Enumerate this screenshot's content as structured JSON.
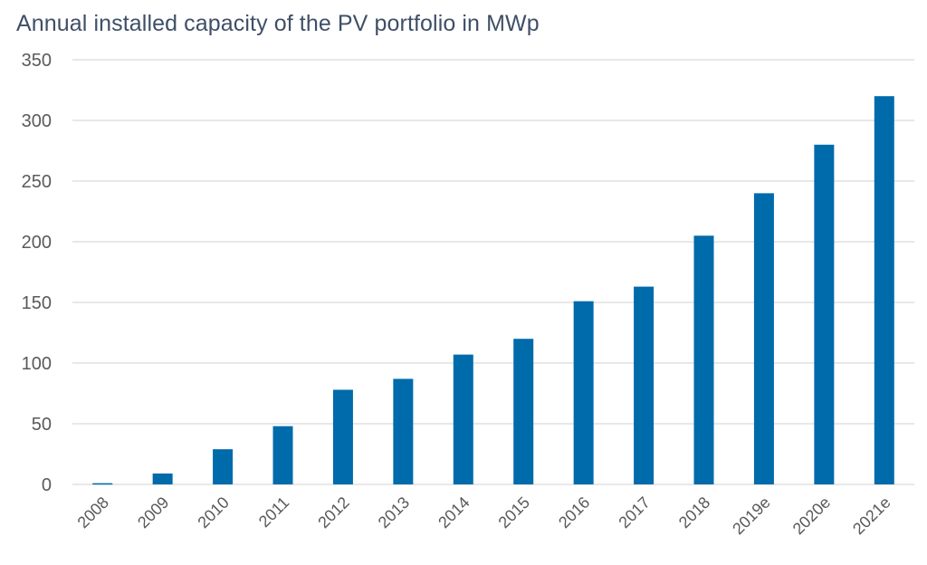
{
  "chart_data": {
    "type": "bar",
    "title": "Annual installed capacity of the PV portfolio in MWp",
    "xlabel": "",
    "ylabel": "",
    "categories": [
      "2008",
      "2009",
      "2010",
      "2011",
      "2012",
      "2013",
      "2014",
      "2015",
      "2016",
      "2017",
      "2018",
      "2019e",
      "2020e",
      "2021e"
    ],
    "values": [
      1,
      9,
      29,
      48,
      78,
      87,
      107,
      120,
      151,
      163,
      205,
      240,
      280,
      320
    ],
    "ylim": [
      0,
      350
    ],
    "yticks": [
      "0",
      "50",
      "100",
      "150",
      "200",
      "250",
      "300",
      "350"
    ],
    "grid": true,
    "legend": "none",
    "colors": {
      "bar": "#006bab",
      "grid": "#d9d9d9",
      "title": "#3f4f66",
      "tick": "#5a5a5a"
    }
  }
}
